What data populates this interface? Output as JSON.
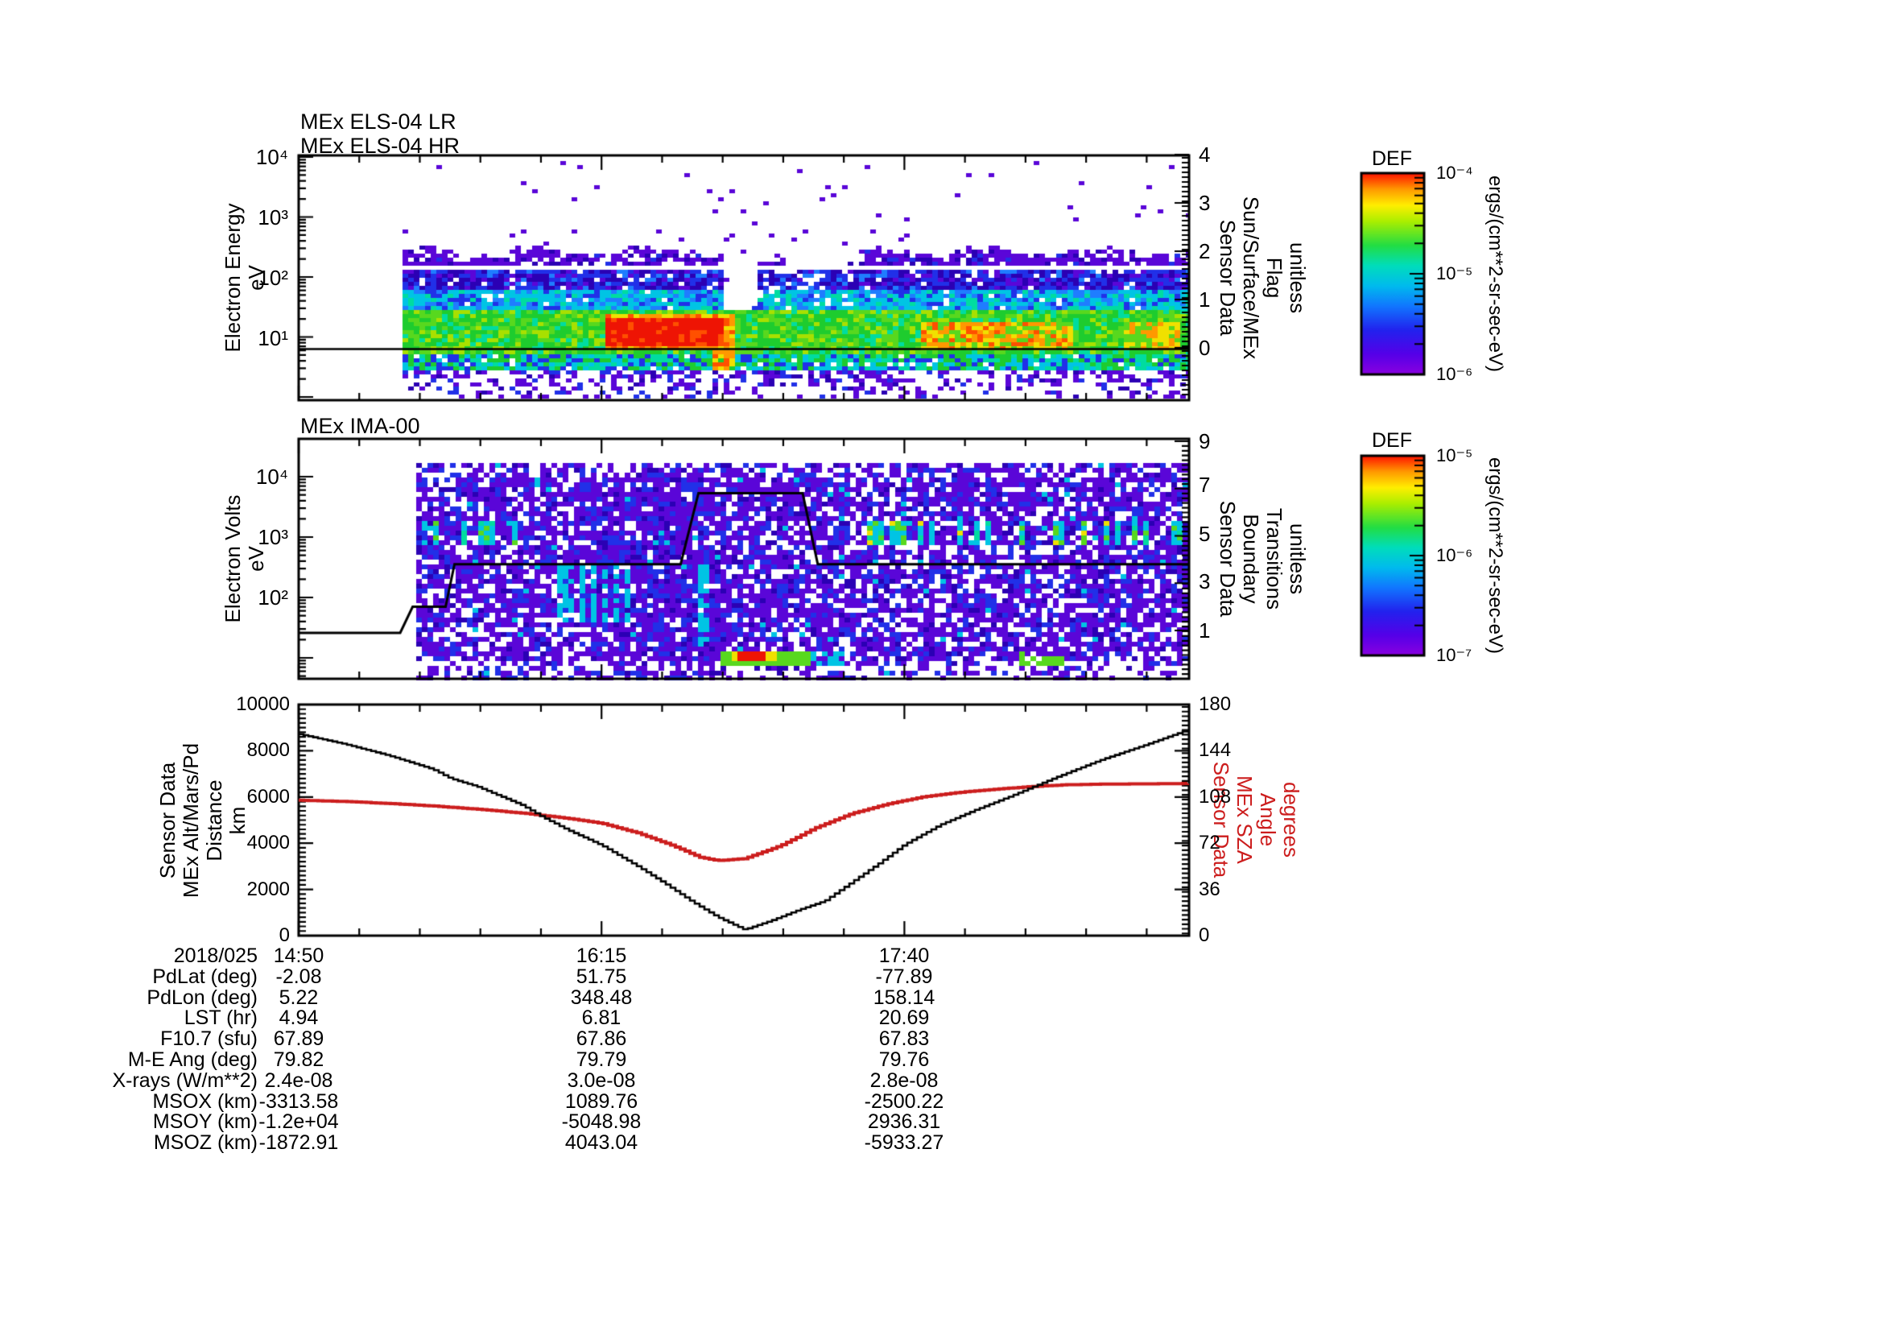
{
  "panels": {
    "els": {
      "title_lines": [
        "MEx ELS-04 LR",
        "MEx ELS-04 HR"
      ],
      "left_axis_title": [
        "Electron Energy",
        "eV"
      ],
      "left_ticks": [
        "10⁴",
        "10³",
        "10²",
        "10¹"
      ],
      "right_axis_title": [
        "Sensor Data",
        "Sun/Surface/MEx",
        "Flag",
        "unitless"
      ],
      "right_ticks": [
        "4",
        "3",
        "2",
        "1",
        "0"
      ]
    },
    "ima": {
      "title": "MEx IMA-00",
      "left_axis_title": [
        "Electron Volts",
        "eV"
      ],
      "left_ticks": [
        "10⁴",
        "10³",
        "10²"
      ],
      "right_axis_title": [
        "Sensor Data",
        "Boundary",
        "Transitions",
        "unitless"
      ],
      "right_ticks": [
        "9",
        "7",
        "5",
        "3",
        "1"
      ]
    },
    "alt": {
      "left_axis_title": [
        "Sensor Data",
        "MEx Alt/Mars/Pd",
        "Distance",
        "km"
      ],
      "left_ticks": [
        "10000",
        "8000",
        "6000",
        "4000",
        "2000",
        "0"
      ],
      "right_axis_title": [
        "Sensor Data",
        "MEx SZA",
        "Angle",
        "degrees"
      ],
      "right_ticks": [
        "180",
        "144",
        "108",
        "72",
        "36",
        "0"
      ]
    }
  },
  "colorbars": [
    {
      "title": "DEF",
      "tick_labels": [
        "10⁻⁴",
        "10⁻⁵",
        "10⁻⁶"
      ],
      "units": "ergs/(cm**2-sr-sec-eV)"
    },
    {
      "title": "DEF",
      "tick_labels": [
        "10⁻⁵",
        "10⁻⁶",
        "10⁻⁷"
      ],
      "units": "ergs/(cm**2-sr-sec-eV)"
    }
  ],
  "table": {
    "rows": [
      {
        "label": "2018/025",
        "values": [
          "14:50",
          "16:15",
          "17:40"
        ]
      },
      {
        "label": "PdLat (deg)",
        "values": [
          "-2.08",
          "51.75",
          "-77.89"
        ]
      },
      {
        "label": "PdLon (deg)",
        "values": [
          "5.22",
          "348.48",
          "158.14"
        ]
      },
      {
        "label": "LST (hr)",
        "values": [
          "4.94",
          "6.81",
          "20.69"
        ]
      },
      {
        "label": "F10.7 (sfu)",
        "values": [
          "67.89",
          "67.86",
          "67.83"
        ]
      },
      {
        "label": "M-E Ang (deg)",
        "values": [
          "79.82",
          "79.79",
          "79.76"
        ]
      },
      {
        "label": "X-rays (W/m**2)",
        "values": [
          "2.4e-08",
          "3.0e-08",
          "2.8e-08"
        ]
      },
      {
        "label": "MSOX (km)",
        "values": [
          "-3313.58",
          "1089.76",
          "-2500.22"
        ]
      },
      {
        "label": "MSOY (km)",
        "values": [
          "-1.2e+04",
          "-5048.98",
          "2936.31"
        ]
      },
      {
        "label": "MSOZ (km)",
        "values": [
          "-1872.91",
          "4043.04",
          "-5933.27"
        ]
      }
    ]
  },
  "chart_data": [
    {
      "type": "heatmap",
      "title": "MEx ELS-04 LR / MEx ELS-04 HR",
      "ylabel": "Electron Energy (eV)",
      "y_log_range": [
        1,
        10000
      ],
      "x_range": {
        "date": "2018/025",
        "start": "14:50",
        "end_approx": "19:00",
        "ticks": [
          "14:50",
          "16:15",
          "17:40"
        ]
      },
      "colorbar": {
        "title": "DEF",
        "units": "ergs/(cm**2-sr-sec-eV)",
        "range": [
          1e-06,
          0.0001
        ]
      },
      "right_axis": {
        "label": "Sensor Data Sun/Surface/MEx Flag (unitless)",
        "range": [
          0,
          4
        ]
      },
      "flag_line_value": 0,
      "description": "Electron energy spectrogram: intense 20-80 eV flux (green) with red saturation near 15:40-16:10 and orange/red patches 17:45-18:30; sparse violet counts above 300 eV; data gap notch just after the red blob."
    },
    {
      "type": "heatmap",
      "title": "MEx IMA-00",
      "ylabel": "Electron Volts (eV)",
      "y_log_range": [
        10,
        30000
      ],
      "colorbar": {
        "title": "DEF",
        "units": "ergs/(cm**2-sr-sec-eV)",
        "range": [
          1e-07,
          1e-05
        ]
      },
      "right_axis": {
        "label": "Sensor Data Boundary Transitions (unitless)",
        "range": [
          0,
          9
        ]
      },
      "boundary_line_points": [
        [
          0,
          0.9
        ],
        [
          0.114,
          0.9
        ],
        [
          0.128,
          2.0
        ],
        [
          0.165,
          2.0
        ],
        [
          0.175,
          3.8
        ],
        [
          0.429,
          3.8
        ],
        [
          0.449,
          6.8
        ],
        [
          0.566,
          6.8
        ],
        [
          0.583,
          3.8
        ],
        [
          1,
          3.8
        ]
      ],
      "description": "Ion spectrogram: dense violet/blue noise with cyan-green streak row near 1 keV, bright yellow-red streak at bottom ~17:10-17:30."
    },
    {
      "type": "line",
      "x_range": {
        "date": "2018/025",
        "start": "14:50",
        "end_approx": "19:00",
        "ticks": [
          "14:50",
          "16:15",
          "17:40"
        ]
      },
      "ylim_left": [
        0,
        10000
      ],
      "ylim_right": [
        0,
        180
      ],
      "series": [
        {
          "name": "MEx Alt/Mars/Pd Distance (km)",
          "axis": "left",
          "color": "#000000",
          "points": [
            [
              0,
              8720
            ],
            [
              0.05,
              8300
            ],
            [
              0.1,
              7800
            ],
            [
              0.15,
              7200
            ],
            [
              0.17,
              6800
            ],
            [
              0.2,
              6450
            ],
            [
              0.25,
              5650
            ],
            [
              0.27,
              5200
            ],
            [
              0.3,
              4600
            ],
            [
              0.34,
              3900
            ],
            [
              0.38,
              3000
            ],
            [
              0.41,
              2270
            ],
            [
              0.44,
              1500
            ],
            [
              0.47,
              800
            ],
            [
              0.5,
              260
            ],
            [
              0.53,
              650
            ],
            [
              0.56,
              1100
            ],
            [
              0.59,
              1500
            ],
            [
              0.62,
              2300
            ],
            [
              0.65,
              3100
            ],
            [
              0.68,
              3950
            ],
            [
              0.72,
              4800
            ],
            [
              0.76,
              5450
            ],
            [
              0.8,
              6050
            ],
            [
              0.85,
              6850
            ],
            [
              0.9,
              7600
            ],
            [
              0.95,
              8250
            ],
            [
              1,
              8930
            ]
          ]
        },
        {
          "name": "MEx SZA Angle (degrees)",
          "axis": "right",
          "color": "#cc1d1d",
          "points": [
            [
              0,
              105.5
            ],
            [
              0.05,
              104.5
            ],
            [
              0.1,
              103
            ],
            [
              0.15,
              101
            ],
            [
              0.2,
              98.5
            ],
            [
              0.25,
              95.5
            ],
            [
              0.3,
              91.5
            ],
            [
              0.34,
              87.5
            ],
            [
              0.38,
              80
            ],
            [
              0.42,
              70
            ],
            [
              0.45,
              61
            ],
            [
              0.47,
              58.5
            ],
            [
              0.5,
              60
            ],
            [
              0.54,
              70
            ],
            [
              0.58,
              84
            ],
            [
              0.62,
              95
            ],
            [
              0.66,
              102.5
            ],
            [
              0.7,
              108
            ],
            [
              0.74,
              111.5
            ],
            [
              0.78,
              114
            ],
            [
              0.82,
              116
            ],
            [
              0.86,
              117.5
            ],
            [
              0.9,
              118
            ],
            [
              1,
              118.5
            ]
          ]
        }
      ]
    }
  ]
}
